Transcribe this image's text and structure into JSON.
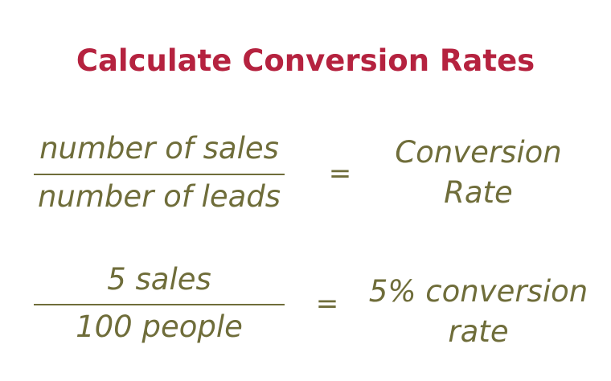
{
  "title": "Calculate Conversion Rates",
  "colors": {
    "title": "#b5223f",
    "text": "#6f6d3a",
    "line": "#6f6d3a",
    "background": "#ffffff"
  },
  "formula": {
    "numerator": "number of sales",
    "denominator": "number of leads",
    "equals": "=",
    "result_line1": "Conversion",
    "result_line2": "Rate"
  },
  "example": {
    "numerator": "5 sales",
    "denominator": "100 people",
    "equals": "=",
    "result_line1": "5% conversion",
    "result_line2": "rate"
  }
}
